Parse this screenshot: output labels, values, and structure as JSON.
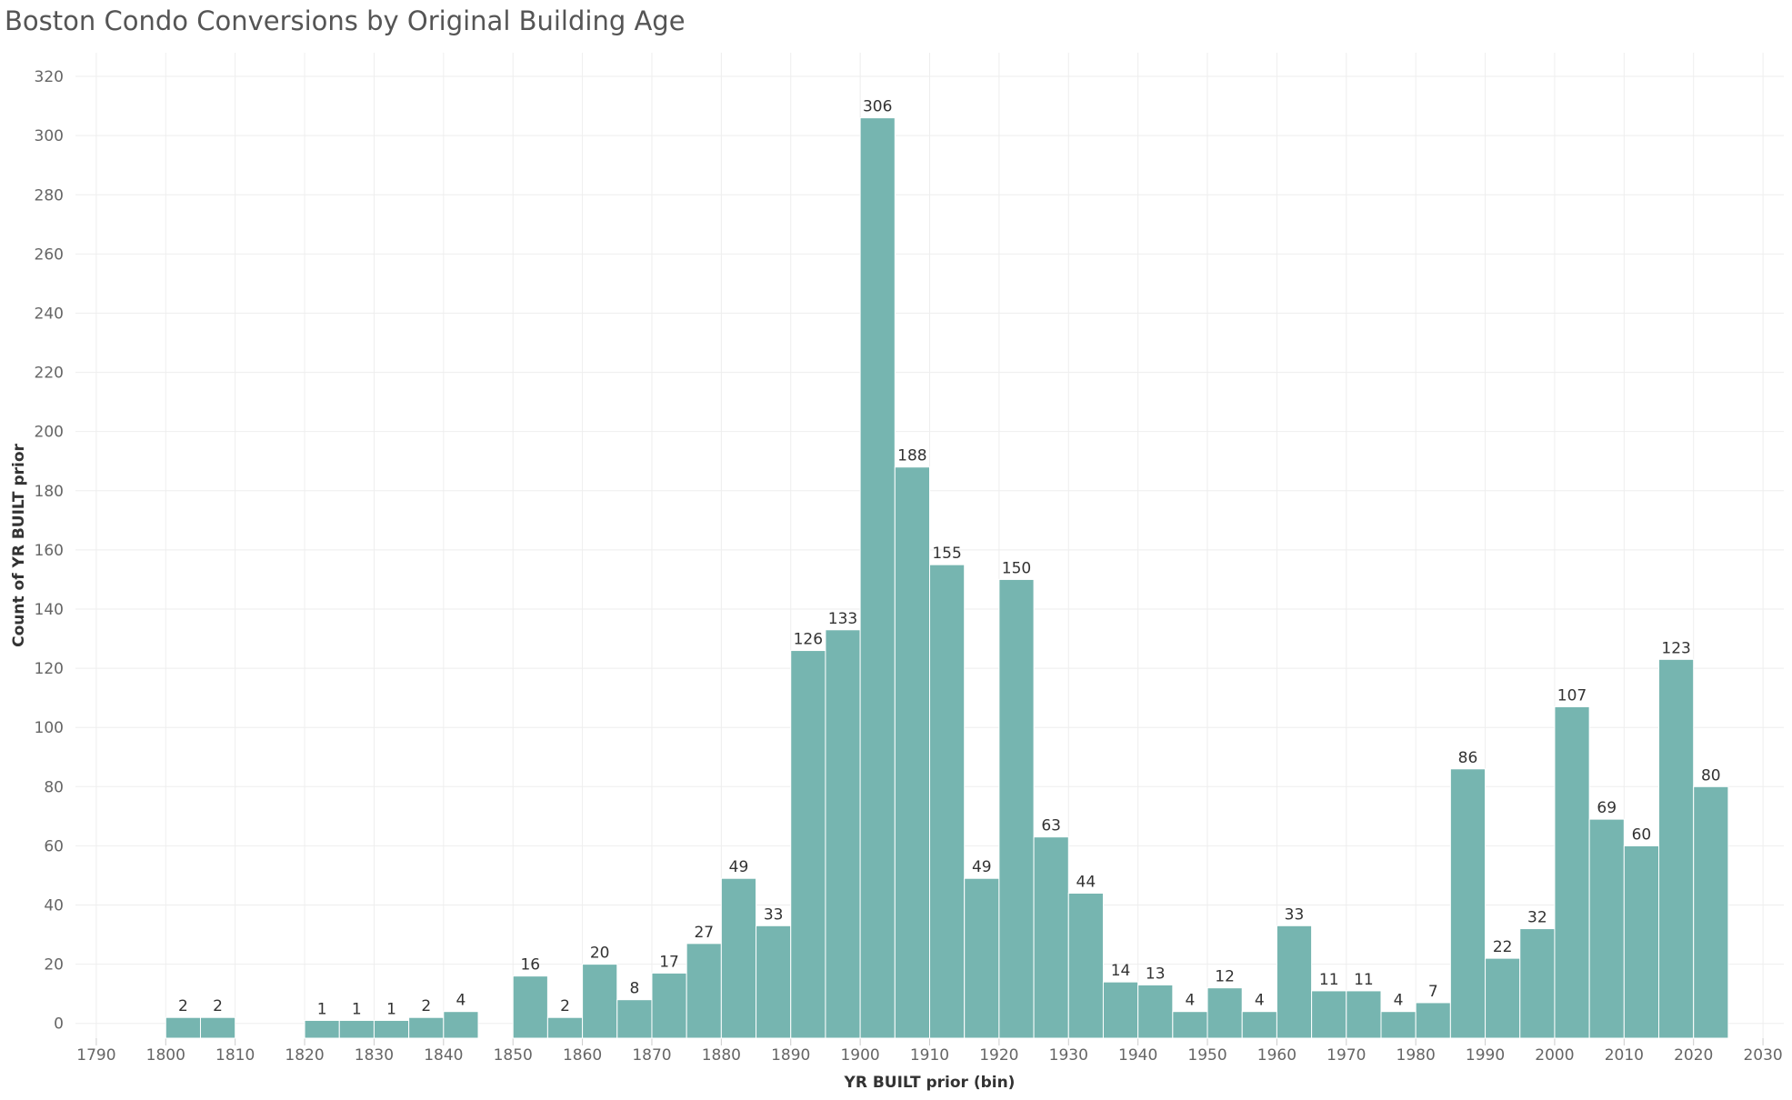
{
  "title": "Boston Condo Conversions by Original Building Age",
  "chart_data": {
    "type": "bar",
    "title": "Boston Condo Conversions by Original Building Age",
    "xlabel": "YR BUILT prior (bin)",
    "ylabel": "Count of YR BUILT prior",
    "bin_width": 5,
    "xlim": [
      1787,
      2033
    ],
    "ylim": [
      -5,
      328
    ],
    "x_ticks": [
      1790,
      1800,
      1810,
      1820,
      1830,
      1840,
      1850,
      1860,
      1870,
      1880,
      1890,
      1900,
      1910,
      1920,
      1930,
      1940,
      1950,
      1960,
      1970,
      1980,
      1990,
      2000,
      2010,
      2020,
      2030
    ],
    "y_ticks": [
      0,
      20,
      40,
      60,
      80,
      100,
      120,
      140,
      160,
      180,
      200,
      220,
      240,
      260,
      280,
      300,
      320
    ],
    "bins": [
      1800,
      1805,
      1820,
      1825,
      1830,
      1835,
      1840,
      1850,
      1855,
      1860,
      1865,
      1870,
      1875,
      1880,
      1885,
      1890,
      1895,
      1900,
      1905,
      1910,
      1915,
      1920,
      1925,
      1930,
      1935,
      1940,
      1945,
      1950,
      1955,
      1960,
      1965,
      1970,
      1975,
      1980,
      1985,
      1990,
      1995,
      2000,
      2005,
      2010,
      2015,
      2020
    ],
    "values": [
      2,
      2,
      1,
      1,
      1,
      2,
      4,
      16,
      2,
      20,
      8,
      17,
      27,
      49,
      33,
      126,
      133,
      306,
      188,
      155,
      49,
      150,
      63,
      44,
      14,
      13,
      4,
      12,
      4,
      33,
      11,
      11,
      4,
      7,
      86,
      22,
      32,
      107,
      69,
      60,
      123,
      80
    ],
    "grid": true,
    "colors": {
      "bar": "#76b5b0",
      "bar_stroke": "#ffffff",
      "grid": "#eeeeee",
      "tick_text": "#666666",
      "label_text": "#333333"
    }
  }
}
